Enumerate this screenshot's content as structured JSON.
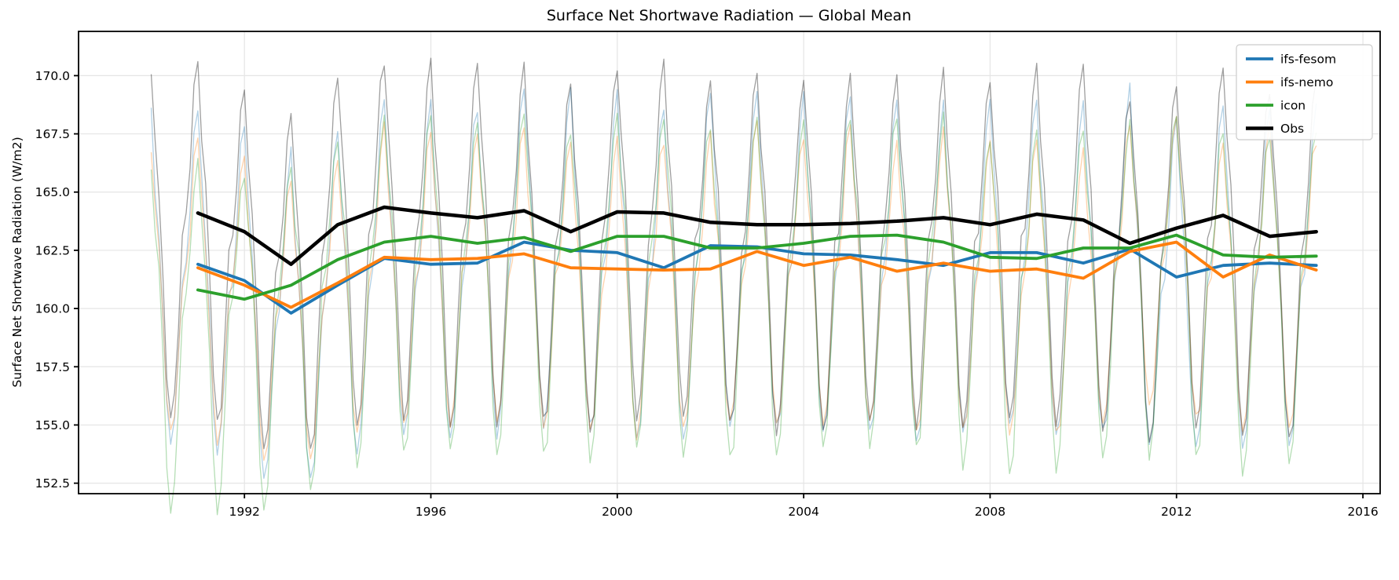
{
  "chart_data": {
    "type": "line",
    "title": "Surface Net Shortwave Radiation — Global Mean",
    "xlabel": "",
    "ylabel": "Surface Net Shortwave Radiation (W/m2)",
    "grid": true,
    "legend_position": "upper right",
    "xlim": [
      1988.44,
      2016.37
    ],
    "ylim": [
      152.05,
      171.9
    ],
    "xticks": [
      1992,
      1996,
      2000,
      2004,
      2008,
      2012,
      2016
    ],
    "yticks": [
      152.5,
      155.0,
      157.5,
      160.0,
      162.5,
      165.0,
      167.5,
      170.0
    ],
    "years": [
      1991,
      1992,
      1993,
      1994,
      1995,
      1996,
      1997,
      1998,
      1999,
      2000,
      2001,
      2002,
      2003,
      2004,
      2005,
      2006,
      2007,
      2008,
      2009,
      2010,
      2011,
      2012,
      2013,
      2014,
      2015
    ],
    "series": [
      {
        "name": "ifs-fesom",
        "color": "#1f77b4",
        "linewidth": 3.8,
        "values": [
          161.9,
          161.2,
          159.8,
          161.0,
          162.15,
          161.9,
          161.95,
          162.85,
          162.5,
          162.4,
          161.75,
          162.7,
          162.65,
          162.35,
          162.3,
          162.1,
          161.85,
          162.4,
          162.4,
          161.95,
          162.55,
          161.35,
          161.85,
          161.95,
          161.85
        ]
      },
      {
        "name": "ifs-nemo",
        "color": "#ff7f0e",
        "linewidth": 3.8,
        "values": [
          161.75,
          161.0,
          160.05,
          161.1,
          162.2,
          162.1,
          162.15,
          162.35,
          161.75,
          161.7,
          161.65,
          161.7,
          162.45,
          161.85,
          162.2,
          161.6,
          161.95,
          161.6,
          161.7,
          161.3,
          162.45,
          162.85,
          161.35,
          162.3,
          161.65
        ]
      },
      {
        "name": "icon",
        "color": "#2ca02c",
        "linewidth": 3.8,
        "values": [
          160.8,
          160.4,
          161.0,
          162.1,
          162.85,
          163.1,
          162.8,
          163.05,
          162.45,
          163.1,
          163.1,
          162.6,
          162.6,
          162.8,
          163.1,
          163.15,
          162.85,
          162.2,
          162.15,
          162.6,
          162.6,
          163.15,
          162.3,
          162.2,
          162.25
        ]
      },
      {
        "name": "Obs",
        "color": "#000000",
        "linewidth": 4.5,
        "values": [
          164.1,
          163.3,
          161.9,
          163.6,
          164.35,
          164.1,
          163.9,
          164.2,
          163.3,
          164.15,
          164.1,
          163.7,
          163.6,
          163.6,
          163.65,
          163.75,
          163.9,
          163.6,
          164.05,
          163.8,
          162.8,
          163.45,
          164.0,
          163.1,
          163.3
        ]
      }
    ],
    "monthly_seasonal_envelope": {
      "description": "Faint background lines: monthly values with strong annual cycle (winter peak, mid-year trough), Jan 1990 through early 2015",
      "start_year": 1990.0,
      "end_year": 2015.08,
      "template_jan_to_dec": [
        1.0,
        0.52,
        0.18,
        -0.28,
        -0.78,
        -1.0,
        -0.9,
        -0.52,
        -0.12,
        -0.02,
        0.32,
        0.82
      ],
      "series": [
        {
          "name": "ifs-fesom",
          "color": "#1f77b4",
          "opacity": 0.35,
          "up_amp": 6.8,
          "down_amp": 7.6,
          "base_1990": 161.6
        },
        {
          "name": "ifs-nemo",
          "color": "#ff7f0e",
          "opacity": 0.35,
          "up_amp": 5.6,
          "down_amp": 7.0,
          "base_1990": 161.4
        },
        {
          "name": "icon",
          "color": "#2ca02c",
          "opacity": 0.35,
          "up_amp": 5.3,
          "down_amp": 9.2,
          "base_1990": 160.6
        },
        {
          "name": "Obs",
          "color": "#000000",
          "opacity": 0.38,
          "up_amp": 6.4,
          "down_amp": 8.8,
          "base_1990": 163.9
        }
      ]
    },
    "style": {
      "grid_color": "#e5e5e5",
      "spine_color": "#000000",
      "background": "#ffffff",
      "legend_border": "#cccccc"
    }
  }
}
